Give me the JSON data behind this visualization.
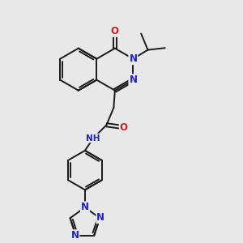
{
  "bg_color": "#e8e8e8",
  "bond_color": "#1a1a1a",
  "bond_width": 1.4,
  "atom_colors": {
    "N": "#2020cc",
    "O": "#cc2020",
    "NH": "#2020cc",
    "H": "#4a9a9a"
  },
  "font_size_atom": 8.5
}
